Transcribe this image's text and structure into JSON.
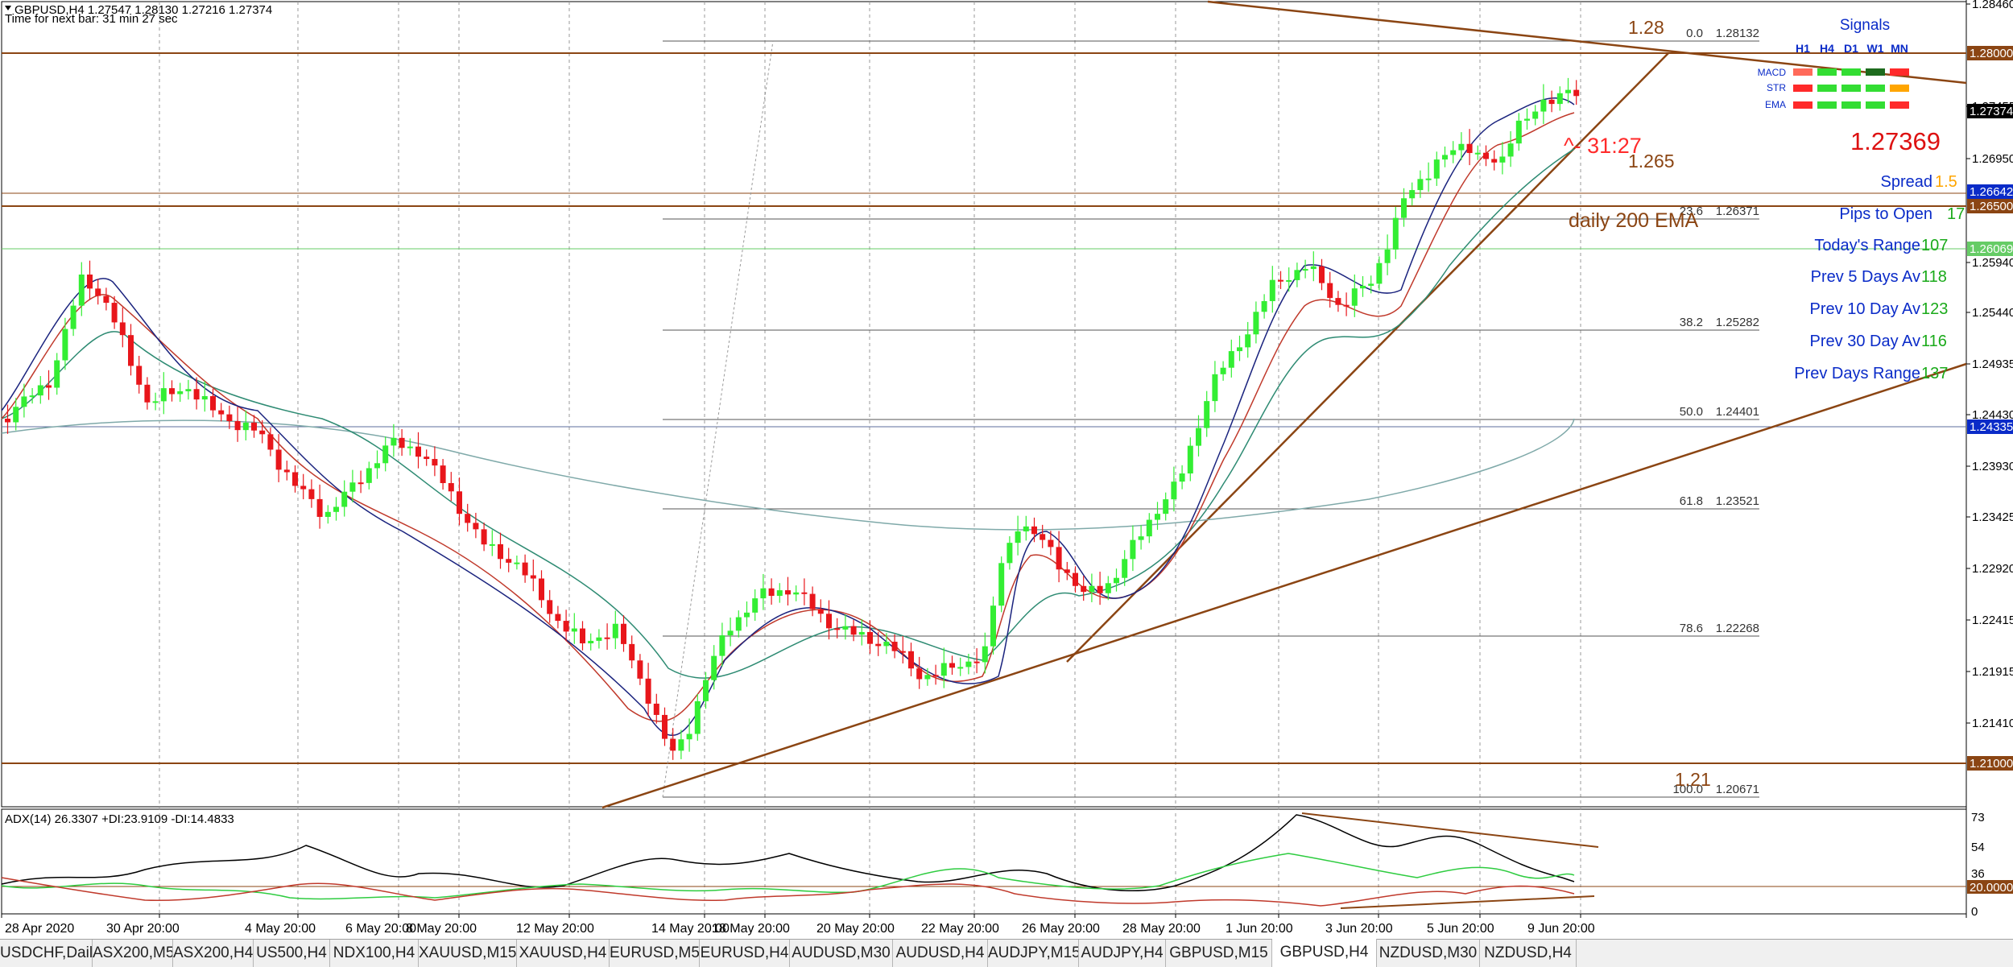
{
  "header": {
    "symbol_line": "GBPUSD,H4  1.27547 1.28130 1.27216 1.27374",
    "timer": "Time for next bar: 31 min 27 sec"
  },
  "price_axis": {
    "ticks": [
      "1.28460",
      "1.27455",
      "1.26950",
      "1.25940",
      "1.25440",
      "1.24935",
      "1.24430",
      "1.23930",
      "1.23425",
      "1.22920",
      "1.22415",
      "1.21915",
      "1.21410"
    ],
    "markers": [
      {
        "label": "1.28000",
        "color": "#8b4513"
      },
      {
        "label": "1.27374",
        "color": "#000000"
      },
      {
        "label": "1.26642",
        "color": "#0a2bc8"
      },
      {
        "label": "1.26500",
        "color": "#8b4513"
      },
      {
        "label": "1.26069",
        "color": "#66cc66"
      },
      {
        "label": "1.24335",
        "color": "#0a2bc8"
      },
      {
        "label": "1.21000",
        "color": "#8b4513"
      }
    ]
  },
  "fib_levels": [
    {
      "ratio": "0.0",
      "price": "1.28132"
    },
    {
      "ratio": "23.6",
      "price": "1.26371"
    },
    {
      "ratio": "38.2",
      "price": "1.25282"
    },
    {
      "ratio": "50.0",
      "price": "1.24401"
    },
    {
      "ratio": "61.8",
      "price": "1.23521"
    },
    {
      "ratio": "78.6",
      "price": "1.22268"
    },
    {
      "ratio": "100.0",
      "price": "1.20671"
    }
  ],
  "annotations": {
    "level_128": "1.28",
    "level_1265": "1.265",
    "level_121": "1.21",
    "countdown": "^- 31:27",
    "ema_note": "daily 200 EMA"
  },
  "signals": {
    "title": "Signals",
    "timeframes": [
      "H1",
      "H4",
      "D1",
      "W1",
      "MN"
    ],
    "rows": [
      {
        "name": "MACD",
        "colors": [
          "#ff6a5a",
          "#33dd33",
          "#33dd33",
          "#1e6b1e",
          "#ff2a2a"
        ]
      },
      {
        "name": "STR",
        "colors": [
          "#ff2a2a",
          "#33dd33",
          "#33dd33",
          "#33dd33",
          "#ffa500"
        ]
      },
      {
        "name": "EMA",
        "colors": [
          "#ff2a2a",
          "#33dd33",
          "#33dd33",
          "#33dd33",
          "#ff2a2a"
        ]
      }
    ]
  },
  "info": {
    "bid": "1.27369",
    "spread_label": "Spread",
    "spread_value": "1.5",
    "pips_label": "Pips to Open",
    "pips_value": "17",
    "today_label": "Today's Range",
    "today_value": "107",
    "prev5_label": "Prev 5 Days Av",
    "prev5_value": "118",
    "prev10_label": "Prev 10 Day Av",
    "prev10_value": "123",
    "prev30_label": "Prev 30 Day Av",
    "prev30_value": "116",
    "prevdays_label": "Prev Days Range",
    "prevdays_value": "137"
  },
  "adx": {
    "label": "ADX(14) 26.3307 +DI:23.9109 -DI:14.4833",
    "ticks": [
      "73",
      "54",
      "36",
      "0"
    ],
    "level_marker": "20.0000"
  },
  "time_axis": [
    "28 Apr 2020",
    "30 Apr 20:00",
    "4 May 20:00",
    "6 May 20:00",
    "8 May 20:00",
    "12 May 20:00",
    "14 May 20:00",
    "18 May 20:00",
    "20 May 20:00",
    "22 May 20:00",
    "26 May 20:00",
    "28 May 20:00",
    "1 Jun 20:00",
    "3 Jun 20:00",
    "5 Jun 20:00",
    "9 Jun 20:00"
  ],
  "tabs": [
    "USDCHF,Daily",
    "ASX200,M5",
    "ASX200,H4",
    "US500,H4",
    "NDX100,H4",
    "XAUUSD,M15",
    "XAUUSD,H4",
    "EURUSD,M5",
    "EURUSD,H4",
    "AUDUSD,M30",
    "AUDUSD,H4",
    "AUDJPY,M15",
    "AUDJPY,H4",
    "GBPUSD,M15",
    "GBPUSD,H4",
    "NZDUSD,M30",
    "NZDUSD,H4"
  ],
  "active_tab": "GBPUSD,H4"
}
